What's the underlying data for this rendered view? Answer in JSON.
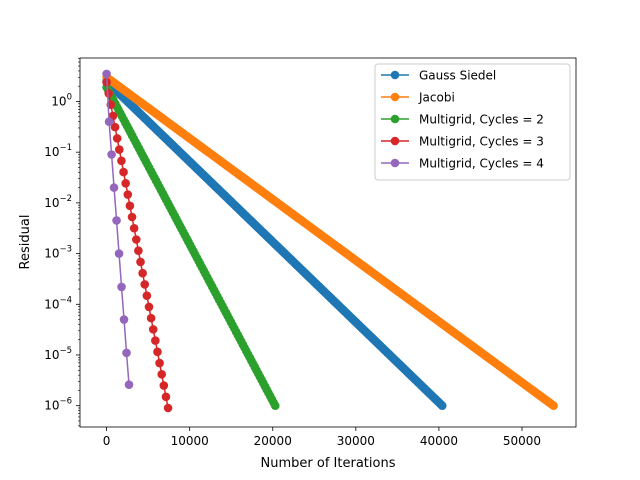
{
  "chart_data": {
    "type": "line",
    "title": "",
    "xlabel": "Number of Iterations",
    "ylabel": "Residual",
    "xlim": [
      -3200,
      56500
    ],
    "ylim": [
      3.8e-07,
      7.2
    ],
    "yscale": "log",
    "grid": false,
    "legend_position": "top-right",
    "x_ticks": [
      {
        "value": 0,
        "label": "0"
      },
      {
        "value": 10000,
        "label": "10000"
      },
      {
        "value": 20000,
        "label": "20000"
      },
      {
        "value": 30000,
        "label": "30000"
      },
      {
        "value": 40000,
        "label": "40000"
      },
      {
        "value": 50000,
        "label": "50000"
      }
    ],
    "y_ticks": [
      {
        "value": 1e-06,
        "base": "10",
        "exp": "−6"
      },
      {
        "value": 1e-05,
        "base": "10",
        "exp": "−5"
      },
      {
        "value": 0.0001,
        "base": "10",
        "exp": "−4"
      },
      {
        "value": 0.001,
        "base": "10",
        "exp": "−3"
      },
      {
        "value": 0.01,
        "base": "10",
        "exp": "−2"
      },
      {
        "value": 0.1,
        "base": "10",
        "exp": "−1"
      },
      {
        "value": 1,
        "base": "10",
        "exp": "0"
      }
    ],
    "series": [
      {
        "name": "Gauss Siedel",
        "color": "#1f77b4",
        "x_start": 0,
        "x_end": 40400,
        "y_start": 2.5,
        "y_end": 1e-06,
        "markers": 300
      },
      {
        "name": "Jacobi",
        "color": "#ff7f0e",
        "x_start": 0,
        "x_end": 53800,
        "y_start": 3.0,
        "y_end": 1e-06,
        "markers": 330
      },
      {
        "name": "Multigrid, Cycles = 2",
        "color": "#2ca02c",
        "x_start": 0,
        "x_end": 20300,
        "y_start": 1.9,
        "y_end": 1e-06,
        "markers": 100
      },
      {
        "name": "Multigrid, Cycles = 3",
        "color": "#d62728",
        "x_start": 0,
        "x_end": 7400,
        "y_start": 2.4,
        "y_end": 9e-07,
        "markers": 30
      },
      {
        "name": "Multigrid, Cycles = 4",
        "color": "#9467bd",
        "x": [
          0,
          300,
          600,
          900,
          1200,
          1500,
          1800,
          2100,
          2400,
          2700
        ],
        "y": [
          3.5,
          0.4,
          0.09,
          0.02,
          0.0045,
          0.001,
          0.00022,
          5e-05,
          1.1e-05,
          2.6e-06
        ]
      }
    ]
  }
}
